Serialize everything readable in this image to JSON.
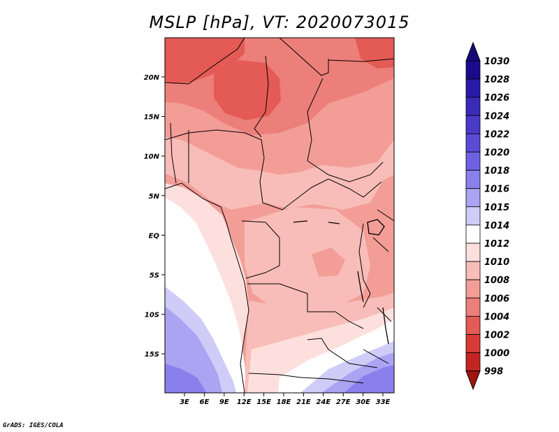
{
  "title": "MSLP [hPa], VT: 2020073015",
  "credit": "GrADS: IGES/COLA",
  "map": {
    "variable": "MSLP",
    "units": "hPa",
    "valid_time": "2020073015",
    "lon_labels": [
      "3E",
      "6E",
      "9E",
      "12E",
      "15E",
      "18E",
      "21E",
      "24E",
      "27E",
      "30E",
      "33E"
    ],
    "lat_labels": [
      "20N",
      "15N",
      "10N",
      "5N",
      "EQ",
      "5S",
      "10S",
      "15S"
    ]
  },
  "colorbar": {
    "levels": [
      "1030",
      "1028",
      "1026",
      "1024",
      "1022",
      "1020",
      "1018",
      "1016",
      "1015",
      "1014",
      "1012",
      "1010",
      "1008",
      "1006",
      "1004",
      "1002",
      "1000",
      "998"
    ],
    "colors": [
      "#1a0a8c",
      "#2a1aa8",
      "#3a2ab8",
      "#4a3ac8",
      "#5a4ad6",
      "#6f62e2",
      "#8a80ec",
      "#aaa4f2",
      "#cfccf8",
      "#ffffff",
      "#fde0de",
      "#f8bdb8",
      "#f39d97",
      "#ec7f7a",
      "#e45a55",
      "#d83a35",
      "#c42522",
      "#b01b18"
    ]
  },
  "legend": {
    "low_end": "#a01512",
    "high_end": "#14087a"
  },
  "colors": {
    "p1004": "#e45a55",
    "p1006": "#ec7f7a",
    "p1008": "#f39d97",
    "p1010": "#f8bdb8",
    "p1012": "#fde0de",
    "p1014": "#ffffff",
    "p1015": "#cfccf8",
    "p1016": "#aaa4f2",
    "p1018": "#8a80ec"
  }
}
